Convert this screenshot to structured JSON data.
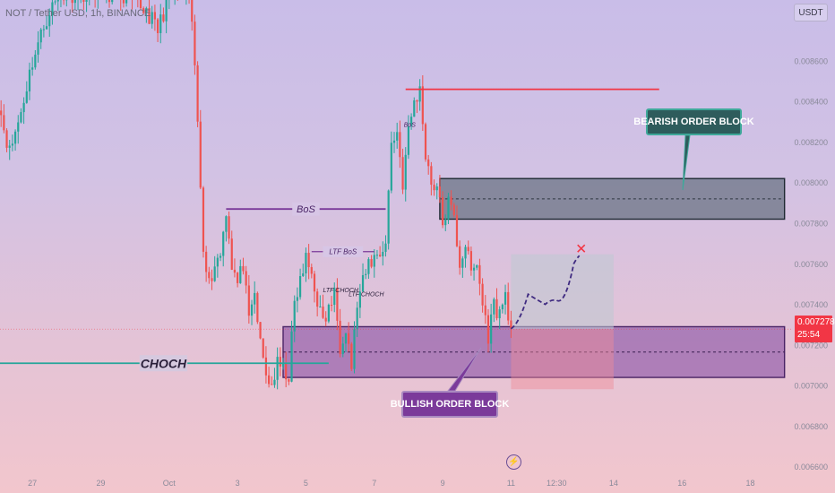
{
  "header": {
    "symbol_title": "NOT / Tether USD, 1h, BINANCE",
    "currency": "USDT"
  },
  "price_tag": {
    "price": "0.007278",
    "countdown": "25:54",
    "color": "#f23645"
  },
  "colors": {
    "up": "#26a69a",
    "down": "#ef5350",
    "bullish_zone": "#7b3a9a",
    "bearish_zone": "#2e5c5c"
  },
  "chart_data": {
    "type": "candlestick",
    "y_axis": {
      "range": [
        0.00655,
        0.0089
      ],
      "ticks": [
        "0.008600",
        "0.008400",
        "0.008200",
        "0.008000",
        "0.007800",
        "0.007600",
        "0.007400",
        "0.007200",
        "0.007000",
        "0.006800",
        "0.006600"
      ],
      "tick_values": [
        0.0086,
        0.0084,
        0.0082,
        0.008,
        0.0078,
        0.0076,
        0.0074,
        0.0072,
        0.007,
        0.0068,
        0.0066
      ]
    },
    "x_axis": {
      "ticks": [
        "27",
        "29",
        "Oct",
        "3",
        "5",
        "7",
        "9",
        "11",
        "12:30",
        "14",
        "16",
        "18"
      ],
      "tick_index": [
        12,
        36,
        60,
        84,
        108,
        132,
        156,
        180,
        196,
        216,
        240,
        264
      ]
    },
    "candles_visible_range": [
      0,
      270
    ],
    "anchors": [
      [
        0,
        0.0084
      ],
      [
        4,
        0.00815
      ],
      [
        8,
        0.00835
      ],
      [
        12,
        0.0086
      ],
      [
        18,
        0.00885
      ],
      [
        22,
        0.00892
      ],
      [
        26,
        0.00893
      ],
      [
        34,
        0.00894
      ],
      [
        42,
        0.00893
      ],
      [
        52,
        0.00885
      ],
      [
        56,
        0.00875
      ],
      [
        60,
        0.00893
      ],
      [
        66,
        0.00893
      ],
      [
        68,
        0.0088
      ],
      [
        70,
        0.0083
      ],
      [
        72,
        0.0077
      ],
      [
        74,
        0.0075
      ],
      [
        76,
        0.0076
      ],
      [
        78,
        0.00765
      ],
      [
        80,
        0.00787
      ],
      [
        82,
        0.0076
      ],
      [
        84,
        0.0075
      ],
      [
        86,
        0.0076
      ],
      [
        88,
        0.0073
      ],
      [
        90,
        0.00745
      ],
      [
        92,
        0.0072
      ],
      [
        94,
        0.00705
      ],
      [
        96,
        0.007
      ],
      [
        98,
        0.0071
      ],
      [
        102,
        0.00705
      ],
      [
        104,
        0.0074
      ],
      [
        108,
        0.00762
      ],
      [
        110,
        0.00755
      ],
      [
        114,
        0.0073
      ],
      [
        118,
        0.00745
      ],
      [
        120,
        0.0072
      ],
      [
        122,
        0.0073
      ],
      [
        124,
        0.0071
      ],
      [
        126,
        0.0074
      ],
      [
        130,
        0.0076
      ],
      [
        134,
        0.00766
      ],
      [
        136,
        0.0077
      ],
      [
        138,
        0.0082
      ],
      [
        140,
        0.00825
      ],
      [
        142,
        0.008
      ],
      [
        144,
        0.00825
      ],
      [
        146,
        0.0084
      ],
      [
        148,
        0.00845
      ],
      [
        150,
        0.00815
      ],
      [
        152,
        0.008
      ],
      [
        154,
        0.00798
      ],
      [
        156,
        0.0078
      ],
      [
        158,
        0.0079
      ],
      [
        160,
        0.00782
      ],
      [
        162,
        0.0076
      ],
      [
        164,
        0.0077
      ],
      [
        166,
        0.00755
      ],
      [
        168,
        0.0076
      ],
      [
        170,
        0.0074
      ],
      [
        172,
        0.00725
      ],
      [
        174,
        0.0074
      ],
      [
        176,
        0.00735
      ],
      [
        178,
        0.00745
      ],
      [
        180,
        0.00728
      ]
    ],
    "structure_lines": [
      {
        "label": "CHOCH",
        "price": 0.00711,
        "from_index": 0,
        "to_index": 116,
        "color": "#26a69a"
      },
      {
        "label": "BoS",
        "price": 0.00787,
        "from_index": 80,
        "to_index": 136,
        "color": "#7b3a9a"
      },
      {
        "label": "LTF BoS",
        "price": 0.00766,
        "from_index": 110,
        "to_index": 132,
        "color": "#7b3a9a"
      },
      {
        "label": "BoS",
        "price": 0.00846,
        "from_index": 143,
        "to_index": 232,
        "color": "#f23645"
      }
    ],
    "zones": [
      {
        "label": "BEARISH ORDER BLOCK",
        "top": 0.00802,
        "bottom": 0.00782,
        "from_index": 155,
        "to_index": 276,
        "mid": 0.00792
      },
      {
        "label": "BULLISH ORDER BLOCK",
        "top": 0.00729,
        "bottom": 0.00704,
        "from_index": 100,
        "to_index": 276,
        "mid": 0.007165
      }
    ],
    "position": {
      "entry": 0.007278,
      "target": 0.007647,
      "stop": 0.006982,
      "from_index": 180,
      "to_index": 216
    },
    "annotations": [
      {
        "text": "LTF CHOCH"
      },
      {
        "text": "LTF CHOCH"
      }
    ],
    "projection": [
      [
        180,
        0.00728
      ],
      [
        186,
        0.00745
      ],
      [
        192,
        0.0074
      ],
      [
        196,
        0.00742
      ],
      [
        202,
        0.0076
      ],
      [
        204,
        0.00764
      ]
    ],
    "current_price": 0.007278
  }
}
